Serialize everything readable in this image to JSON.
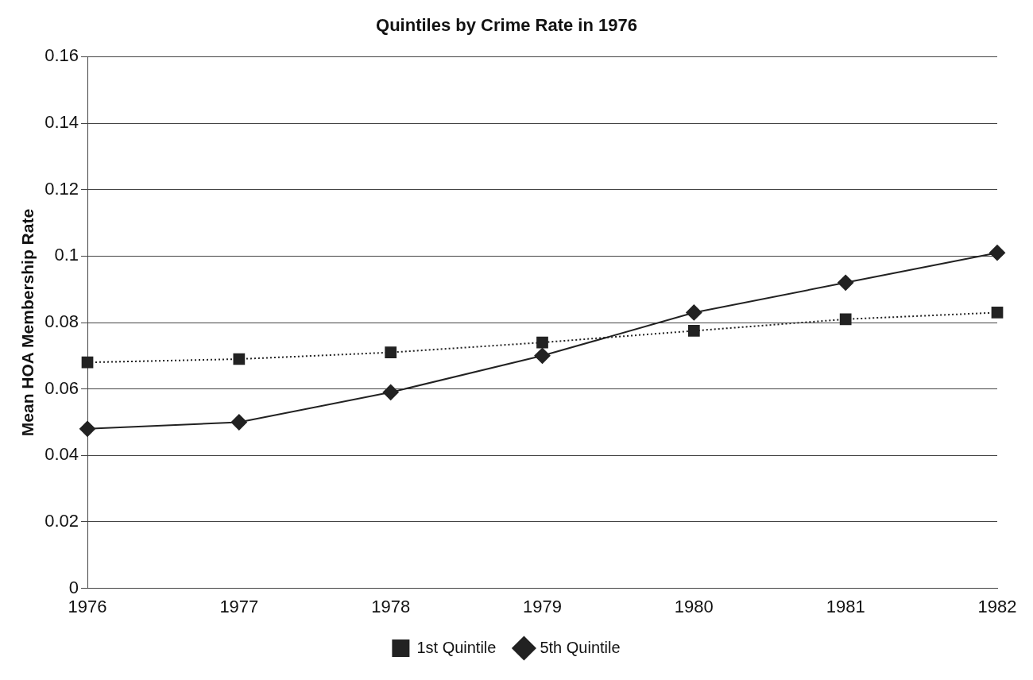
{
  "chart_data": {
    "type": "line",
    "title": "Quintiles by Crime Rate in 1976",
    "ylabel": "Mean HOA Membership Rate",
    "categories": [
      "1976",
      "1977",
      "1978",
      "1979",
      "1980",
      "1981",
      "1982"
    ],
    "series": [
      {
        "name": "1st Quintile",
        "color": "#222222",
        "marker": "square",
        "line_style": "dotted",
        "values": [
          0.068,
          0.069,
          0.071,
          0.074,
          0.0775,
          0.081,
          0.083
        ]
      },
      {
        "name": "5th Quintile",
        "color": "#222222",
        "marker": "diamond",
        "line_style": "solid",
        "values": [
          0.048,
          0.05,
          0.059,
          0.07,
          0.083,
          0.092,
          0.101
        ]
      }
    ],
    "ylim": [
      0,
      0.16
    ],
    "yticks": [
      0,
      0.02,
      0.04,
      0.06,
      0.08,
      0.1,
      0.12,
      0.14,
      0.16
    ],
    "grid": "y",
    "legend": "bottom"
  }
}
